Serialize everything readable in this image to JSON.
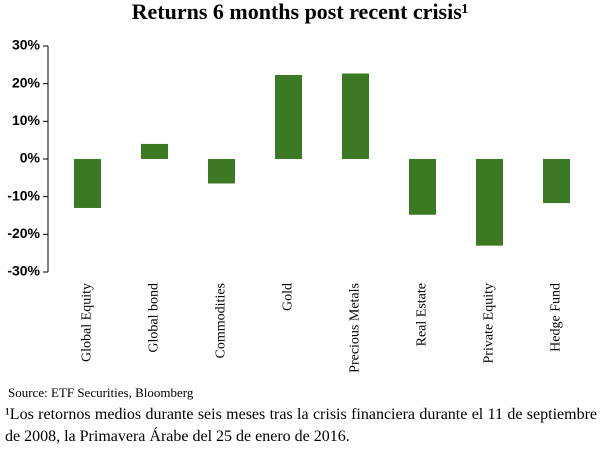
{
  "chart_data": {
    "type": "bar",
    "title": "Returns 6 months post recent crisis¹",
    "categories": [
      "Global Equity",
      "Global bond",
      "Commodities",
      "Gold",
      "Precious Metals",
      "Real Estate",
      "Private Equity",
      "Hedge Fund"
    ],
    "values": [
      -13,
      4,
      -6.5,
      22.3,
      22.7,
      -14.8,
      -23,
      -11.7
    ],
    "color": "#3b7a23",
    "ylim": [
      -30,
      30
    ],
    "yticks": [
      {
        "value": -30,
        "label": "-30%"
      },
      {
        "value": -20,
        "label": "-20%"
      },
      {
        "value": -10,
        "label": "-10%"
      },
      {
        "value": 0,
        "label": "0%"
      },
      {
        "value": 10,
        "label": "10%"
      },
      {
        "value": 20,
        "label": "20%"
      },
      {
        "value": 30,
        "label": "30%"
      }
    ],
    "grid": false,
    "source": "Source: ETF Securities, Bloomberg",
    "footnote": "¹Los retornos medios durante seis meses tras la crisis financiera durante el 11 de septiembre de 2008, la Primavera Árabe del 25 de enero de 2016."
  }
}
